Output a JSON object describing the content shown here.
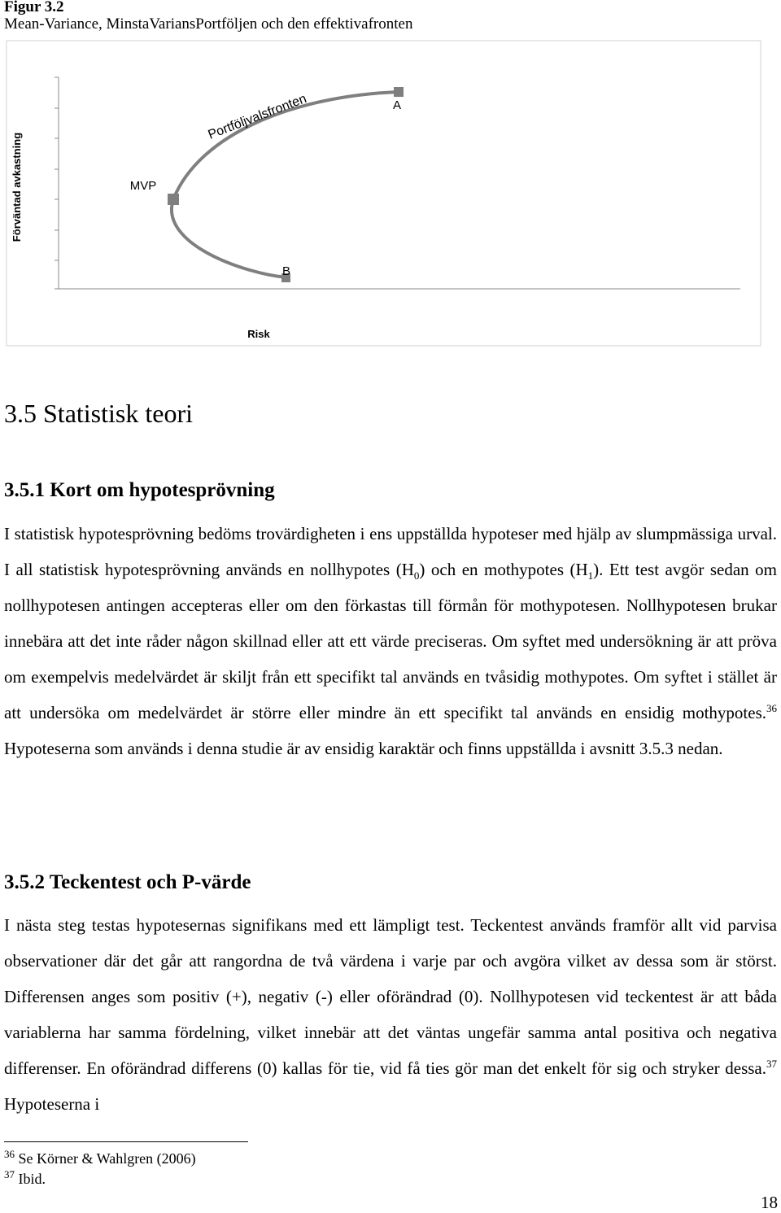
{
  "figure": {
    "number": "Figur 3.2",
    "caption": "Mean-Variance, MinstaVariansPortföljen och den effektivafronten",
    "y_label": "Förväntad avkastning",
    "x_label": "Risk",
    "curve_label": "Portföljvalsfronten",
    "points": [
      "A",
      "MVP",
      "B"
    ]
  },
  "section": {
    "heading": "3.5 Statistisk teori",
    "subsections": [
      {
        "heading": "3.5.1 Kort om hypotesprövning",
        "paragraph": [
          "I statistisk hypotesprövning bedöms trovärdigheten i ens uppställda hypoteser med hjälp av slumpmässiga urval. I all statistisk hypotesprövning används en nollhypotes (H",
          "0",
          ") och en mothypotes (H",
          "1",
          "). Ett test avgör sedan om nollhypotesen antingen accepteras eller om den förkastas till förmån för mothypotesen. Nollhypotesen brukar innebära att det inte råder någon skillnad eller att ett värde preciseras. Om syftet med undersökning är att pröva om exempelvis medelvärdet är skiljt från ett specifikt tal används en tvåsidig mothypotes. Om syftet i stället är att undersöka om medelvärdet är större eller mindre än ett specifikt tal används en ensidig mothypotes.",
          "36",
          " Hypoteserna som används i denna studie är av ensidig karaktär och finns uppställda i avsnitt 3.5.3 nedan."
        ]
      },
      {
        "heading": "3.5.2 Teckentest och P-värde",
        "paragraph": [
          "I nästa steg testas hypotesernas signifikans med ett lämpligt test. Teckentest används framför allt vid parvisa observationer där det går att rangordna de två värdena i varje par och avgöra vilket av dessa som är störst. Differensen anges som positiv (+), negativ (-) eller oförändrad (0). Nollhypotesen vid teckentest är att båda variablerna har samma fördelning, vilket innebär att det väntas ungefär samma antal positiva och negativa differenser. En oförändrad differens (0) kallas för tie, vid få ties gör man det enkelt för sig och stryker dessa.",
          "37",
          " Hypoteserna i"
        ]
      }
    ]
  },
  "footnotes": [
    {
      "number": "36",
      "text": "Se Körner & Wahlgren (2006)"
    },
    {
      "number": "37",
      "text": "Ibid."
    }
  ],
  "page_number": "18"
}
